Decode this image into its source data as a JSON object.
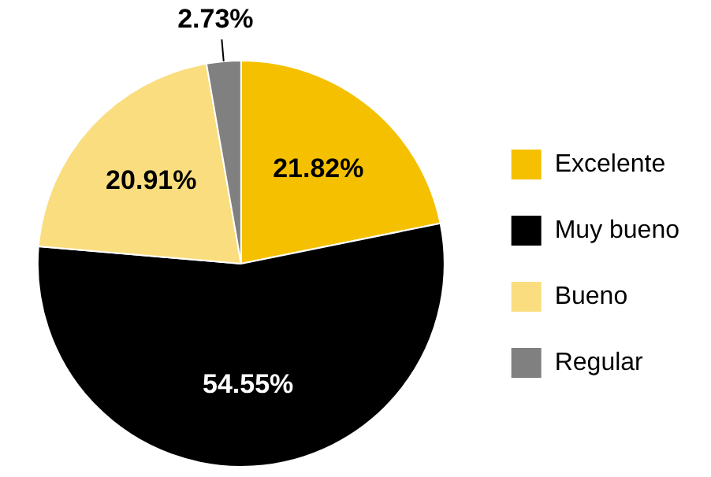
{
  "chart_data": {
    "type": "pie",
    "categories": [
      "Excelente",
      "Muy bueno",
      "Bueno",
      "Regular"
    ],
    "values": [
      21.82,
      54.55,
      20.91,
      2.73
    ],
    "colors": [
      "#f5c000",
      "#000000",
      "#fadd7e",
      "#808080"
    ],
    "value_labels": [
      "21.82%",
      "54.55%",
      "20.91%",
      "2.73%"
    ],
    "legend": "right"
  }
}
